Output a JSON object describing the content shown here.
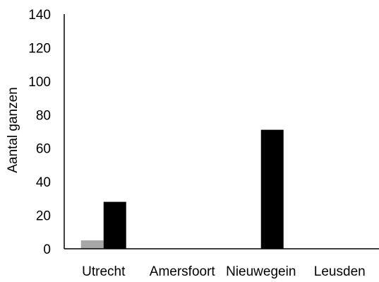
{
  "chart_data": {
    "type": "bar",
    "title": "",
    "xlabel": "",
    "ylabel": "Aantal ganzen",
    "categories": [
      "Utrecht",
      "Amersfoort",
      "Nieuwegein",
      "Leusden"
    ],
    "series": [
      {
        "values": [
          5,
          0,
          0,
          0
        ],
        "color": "#a6a6a6"
      },
      {
        "values": [
          28,
          0,
          71,
          0
        ],
        "color": "#000000"
      }
    ],
    "ylim": [
      0,
      140
    ],
    "yticks": [
      0,
      20,
      40,
      60,
      80,
      100,
      120,
      140
    ],
    "grid": false,
    "legend": "none"
  }
}
